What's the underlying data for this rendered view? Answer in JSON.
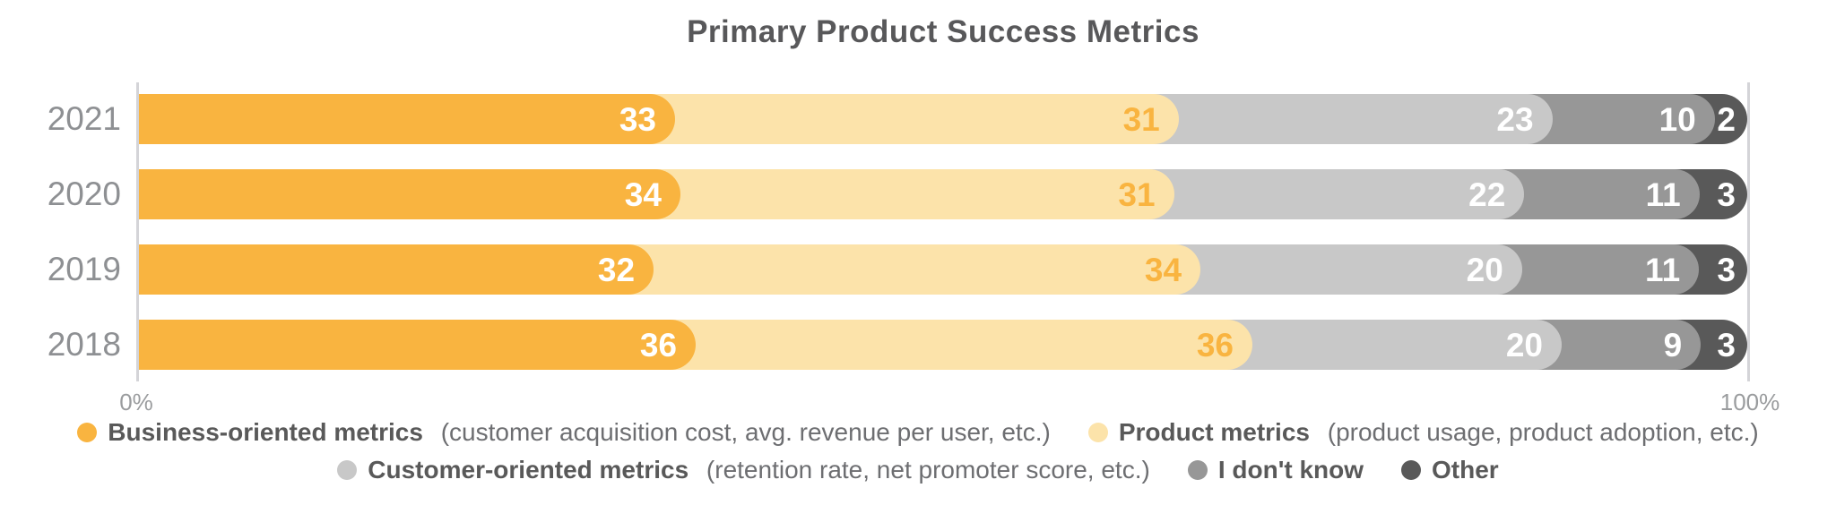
{
  "title": "Primary Product Success Metrics",
  "axis": {
    "min_label": "0%",
    "max_label": "100%"
  },
  "colors": {
    "background": "#ffffff",
    "title_text": "#58585a",
    "year_label_text": "#8e9093",
    "axis_line": "#d4d4d8",
    "tick_label_text": "#9a9c9e",
    "legend_name_text": "#595959",
    "legend_desc_text": "#6d6e71"
  },
  "chart_data": {
    "type": "bar",
    "orientation": "horizontal",
    "stacked": true,
    "title": "Primary Product Success Metrics",
    "categories": [
      "2021",
      "2020",
      "2019",
      "2018"
    ],
    "series": [
      {
        "name": "Business-oriented metrics",
        "description": "(customer acquisition cost, avg. revenue per user, etc.)",
        "color": "#f9b440",
        "label_color": "#ffffff",
        "values": [
          33,
          34,
          32,
          36
        ]
      },
      {
        "name": "Product metrics",
        "description": "(product usage, product adoption, etc.)",
        "color": "#fce3aa",
        "label_color": "#f9b440",
        "values": [
          31,
          31,
          34,
          36
        ]
      },
      {
        "name": "Customer-oriented metrics",
        "description": "(retention rate, net promoter score, etc.)",
        "color": "#c8c8c8",
        "label_color": "#ffffff",
        "values": [
          23,
          22,
          20,
          20
        ]
      },
      {
        "name": "I don't know",
        "description": "",
        "color": "#979797",
        "label_color": "#ffffff",
        "values": [
          10,
          11,
          11,
          9
        ]
      },
      {
        "name": "Other",
        "description": "",
        "color": "#595959",
        "label_color": "#ffffff",
        "values": [
          2,
          3,
          3,
          3
        ]
      }
    ],
    "xlim": [
      0,
      100
    ],
    "x_tick_labels": [
      "0%",
      "100%"
    ],
    "grid": false,
    "legend_position": "bottom"
  },
  "legend": {
    "rows": [
      [
        0,
        1
      ],
      [
        2,
        3,
        4
      ]
    ]
  }
}
